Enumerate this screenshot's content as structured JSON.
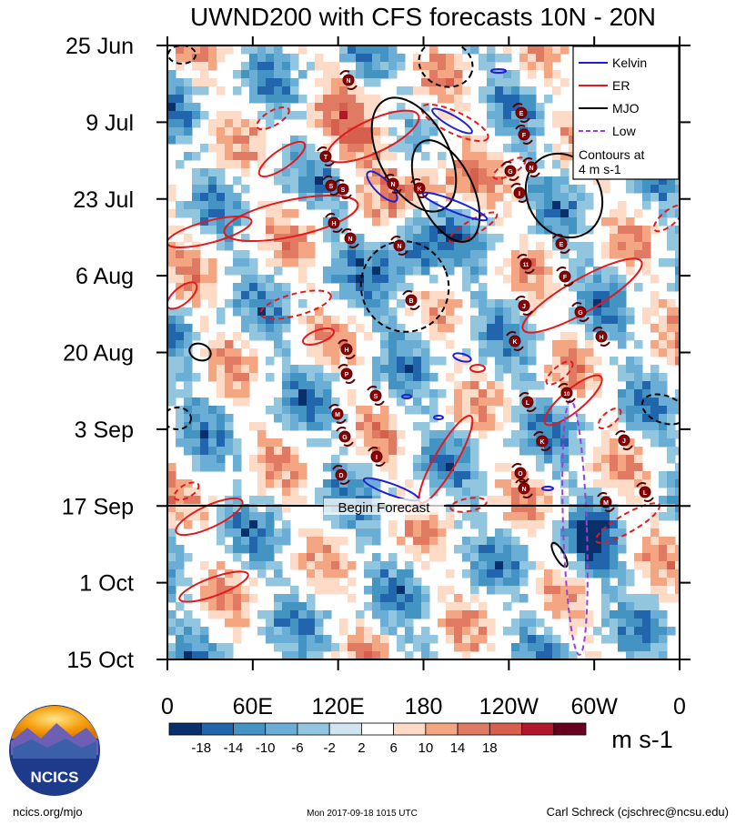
{
  "chart_data": {
    "type": "heatmap",
    "title": "UWND200 with CFS forecasts  10N - 20N",
    "variable": "UWND200",
    "latitude_band": "10N - 20N",
    "y_tick_labels": [
      "25 Jun",
      "9 Jul",
      "23 Jul",
      "6 Aug",
      "20 Aug",
      "3 Sep",
      "17 Sep",
      "1 Oct",
      "15 Oct"
    ],
    "x_tick_labels": [
      "0",
      "60E",
      "120E",
      "180",
      "120W",
      "60W",
      "0"
    ],
    "x_tick_degrees_east": [
      0,
      60,
      120,
      180,
      240,
      300,
      360
    ],
    "y_range": [
      "25 Jun",
      "15 Oct"
    ],
    "forecast_start": "17 Sep",
    "forecast_label": "Begin Forecast",
    "colorbar": {
      "levels": [
        -18,
        -14,
        -10,
        -6,
        -2,
        2,
        6,
        10,
        14,
        18
      ],
      "colors": [
        "#08306b",
        "#2166ac",
        "#4393c3",
        "#6aaed6",
        "#92c5de",
        "#d1e5f0",
        "#ffffff",
        "#fddbc7",
        "#f4a582",
        "#e07a63",
        "#d6604d",
        "#b2182b",
        "#67001f"
      ],
      "units": "m s-1"
    },
    "legend": {
      "placement": "top-right",
      "entries": [
        {
          "label": "Kelvin",
          "color": "#1f1fd6",
          "style": "solid"
        },
        {
          "label": "ER",
          "color": "#e31a1c",
          "style": "solid"
        },
        {
          "label": "MJO",
          "color": "#000000",
          "style": "solid"
        },
        {
          "label": "Low",
          "color": "#9b3fd6",
          "style": "dashed"
        }
      ],
      "note": "Contours at\n4 m s-1"
    },
    "tropical_cyclone_markers": [
      "N",
      "N",
      "T",
      "S",
      "S",
      "H",
      "N",
      "K",
      "E",
      "F",
      "G",
      "I",
      "E",
      "N",
      "N",
      "11",
      "F",
      "B",
      "J",
      "G",
      "H",
      "K",
      "H",
      "P",
      "S",
      "L",
      "M",
      "G",
      "10",
      "K",
      "J",
      "I",
      "D",
      "O",
      "N",
      "M",
      "L"
    ]
  },
  "footer": {
    "logo_text": "NCICS",
    "url": "ncics.org/mjo",
    "timestamp": "Mon 2017-09-18 1015 UTC",
    "author": "Carl Schreck (cjschrec@ncsu.edu)"
  }
}
